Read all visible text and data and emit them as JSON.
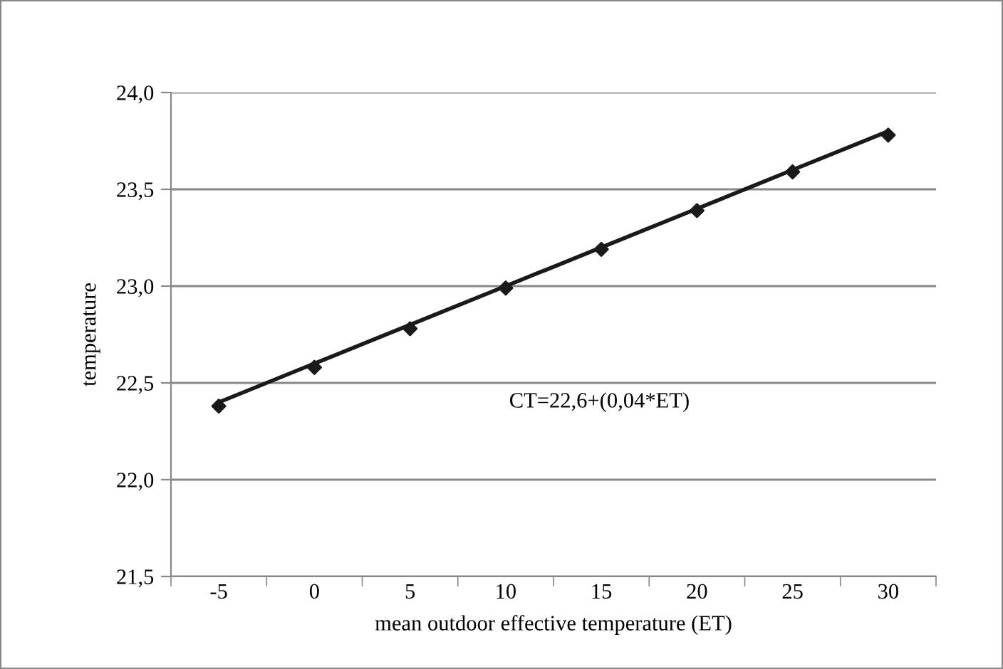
{
  "chart_data": {
    "type": "scatter",
    "xlabel": "mean outdoor effective temperature (ET)",
    "ylabel": "temperature",
    "categories": [
      "-5",
      "0",
      "5",
      "10",
      "15",
      "20",
      "25",
      "30"
    ],
    "series": [
      {
        "color": "#1a1a1a",
        "marker": "diamond",
        "values": [
          22.38,
          22.58,
          22.78,
          22.99,
          23.19,
          23.39,
          23.59,
          23.78
        ]
      },
      {
        "type": "line",
        "color": "#1a1a1a",
        "marker": "none",
        "line_style": "solid",
        "values": [
          22.4,
          22.6,
          22.8,
          23.0,
          23.2,
          23.4,
          23.6,
          23.8
        ]
      }
    ],
    "ylim": [
      21.5,
      24.0
    ],
    "yticks": [
      {
        "value": 21.5,
        "label": "21,5"
      },
      {
        "value": 22.0,
        "label": "22,0"
      },
      {
        "value": 22.5,
        "label": "22,5"
      },
      {
        "value": 23.0,
        "label": "23,0"
      },
      {
        "value": 23.5,
        "label": "23,5"
      },
      {
        "value": 24.0,
        "label": "24,0"
      }
    ],
    "grid": "y",
    "annotations": [
      "CT=22,6+(0,04*ET)"
    ]
  }
}
